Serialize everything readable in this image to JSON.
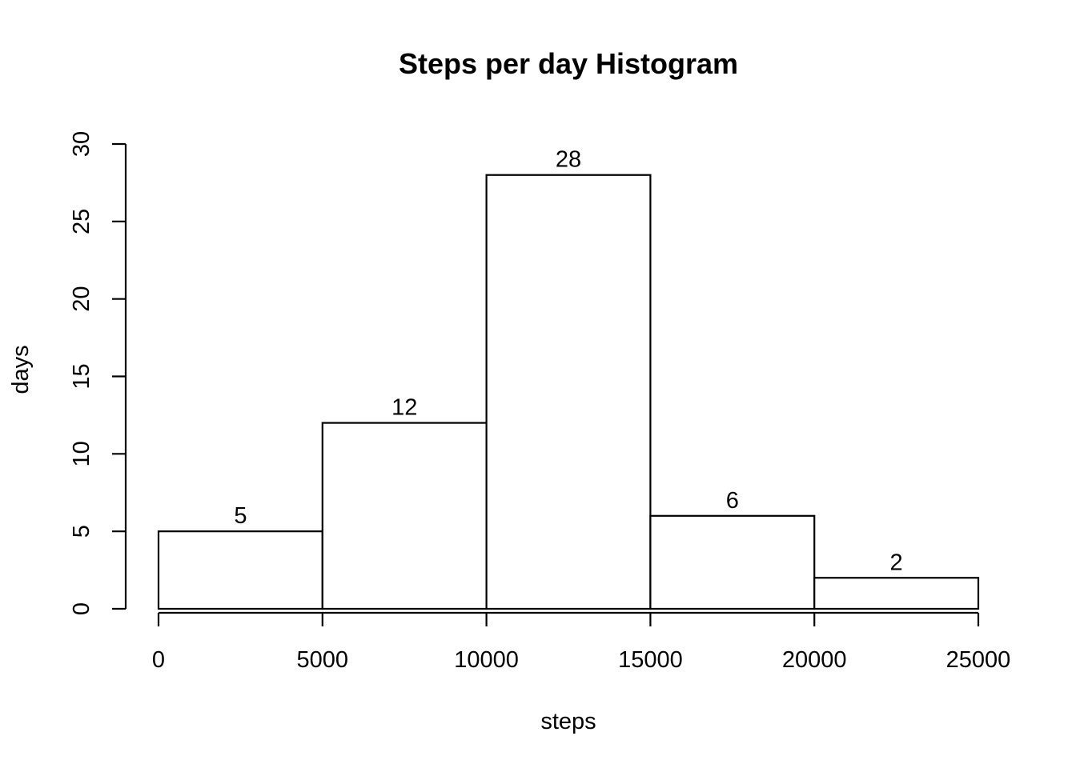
{
  "chart_data": {
    "type": "bar",
    "title": "Steps per day Histogram",
    "xlabel": "steps",
    "ylabel": "days",
    "bins": [
      {
        "from": 0,
        "to": 5000,
        "count": 5
      },
      {
        "from": 5000,
        "to": 10000,
        "count": 12
      },
      {
        "from": 10000,
        "to": 15000,
        "count": 28
      },
      {
        "from": 15000,
        "to": 20000,
        "count": 6
      },
      {
        "from": 20000,
        "to": 25000,
        "count": 2
      }
    ],
    "values": [
      5,
      12,
      28,
      6,
      2
    ],
    "data_labels": [
      "5",
      "12",
      "28",
      "6",
      "2"
    ],
    "xlim": [
      0,
      25000
    ],
    "ylim": [
      0,
      30
    ],
    "x_ticks": [
      0,
      5000,
      10000,
      15000,
      20000,
      25000
    ],
    "x_tick_labels": [
      "0",
      "5000",
      "10000",
      "15000",
      "20000",
      "25000"
    ],
    "y_ticks": [
      0,
      5,
      10,
      15,
      20,
      25,
      30
    ],
    "y_tick_labels": [
      "0",
      "5",
      "10",
      "15",
      "20",
      "25",
      "30"
    ],
    "grid": false,
    "colors": {
      "bar_fill": "#ffffff",
      "bar_stroke": "#000000"
    }
  }
}
